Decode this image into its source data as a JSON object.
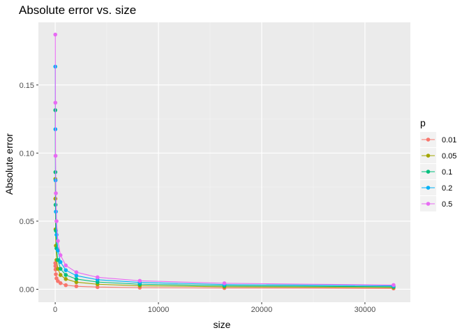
{
  "chart_data": {
    "type": "line",
    "title": "Absolute error vs. size",
    "xlabel": "size",
    "ylabel": "Absolute error",
    "xlim": [
      -1630,
      34400
    ],
    "ylim": [
      -0.0095,
      0.196
    ],
    "xticks": [
      0,
      10000,
      20000,
      30000
    ],
    "yticks": [
      0.0,
      0.05,
      0.1,
      0.15
    ],
    "xtick_labels": [
      "0",
      "10000",
      "20000",
      "30000"
    ],
    "ytick_labels": [
      "0.00",
      "0.05",
      "0.10",
      "0.15"
    ],
    "grid": true,
    "legend": {
      "title": "p",
      "position": "right"
    },
    "x": [
      8,
      16,
      32,
      64,
      128,
      256,
      512,
      1024,
      2048,
      4096,
      8192,
      16384,
      32768
    ],
    "series": [
      {
        "name": "0.01",
        "color": "#F8766D",
        "values": [
          0.0192,
          0.017,
          0.0145,
          0.011,
          0.008,
          0.006,
          0.0045,
          0.003,
          0.0022,
          0.0016,
          0.0012,
          0.0009,
          0.0006
        ]
      },
      {
        "name": "0.05",
        "color": "#A3A500",
        "values": [
          0.081,
          0.0665,
          0.044,
          0.032,
          0.0215,
          0.015,
          0.0105,
          0.0075,
          0.0052,
          0.0037,
          0.0026,
          0.0018,
          0.0013
        ]
      },
      {
        "name": "0.1",
        "color": "#00BF7D",
        "values": [
          0.1315,
          0.086,
          0.062,
          0.043,
          0.03,
          0.0215,
          0.015,
          0.0105,
          0.0075,
          0.0053,
          0.0037,
          0.0026,
          0.0018
        ]
      },
      {
        "name": "0.2",
        "color": "#00B0F6",
        "values": [
          0.1635,
          0.1175,
          0.08,
          0.057,
          0.04,
          0.0285,
          0.02,
          0.014,
          0.01,
          0.007,
          0.005,
          0.0035,
          0.0025
        ]
      },
      {
        "name": "0.5",
        "color": "#E76BF3",
        "values": [
          0.187,
          0.137,
          0.098,
          0.0705,
          0.05,
          0.0355,
          0.025,
          0.0175,
          0.0125,
          0.0088,
          0.0062,
          0.0044,
          0.0031
        ]
      }
    ]
  }
}
